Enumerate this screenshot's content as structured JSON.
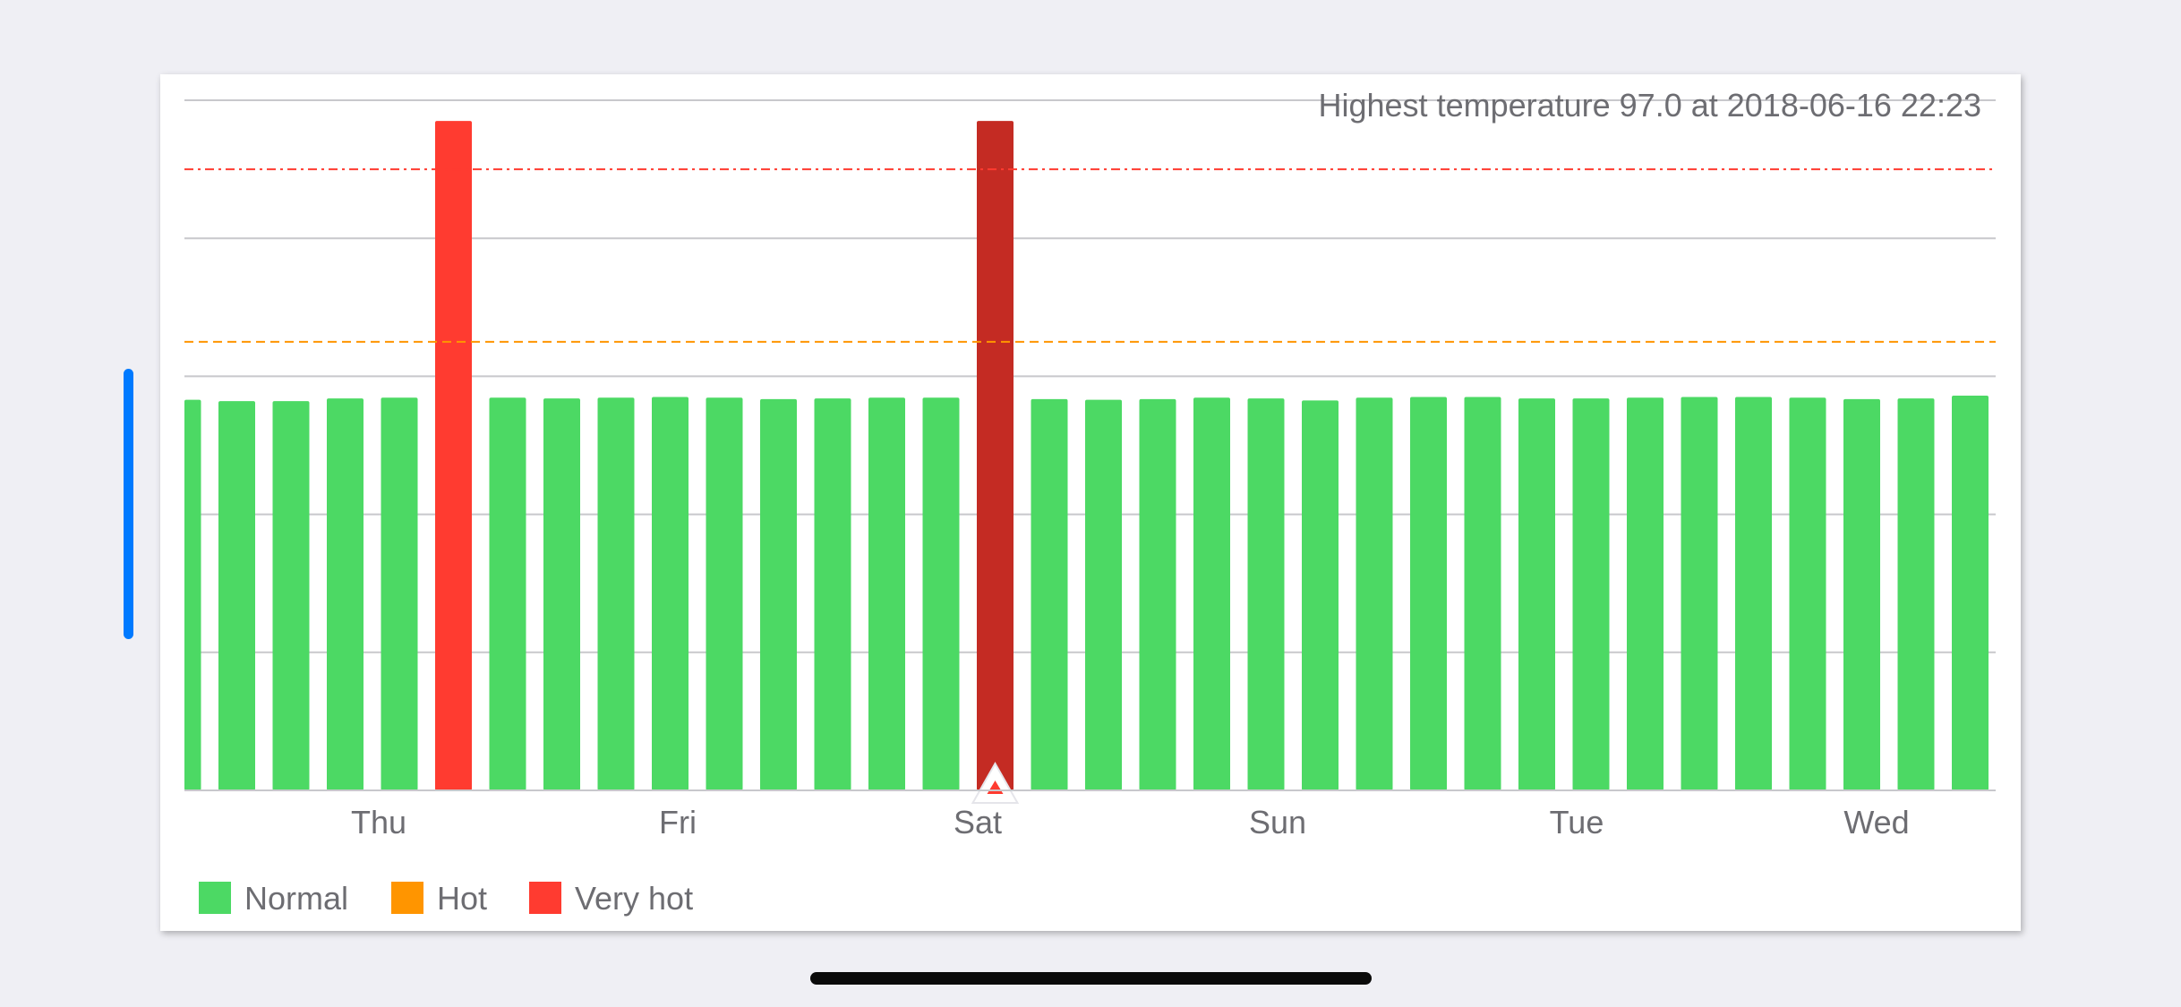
{
  "colors": {
    "normal": "#4cd964",
    "hot": "#ff9500",
    "very_hot": "#ff3b30",
    "selected": "#c42b23",
    "scroll_indicator": "#007aff",
    "home_indicator": "#0a0a0a",
    "gridline": "#c8c8cc"
  },
  "chart_data": {
    "type": "bar",
    "subtitle": "Highest temperature 97.0 at 2018-06-16 22:23",
    "x_tick_labels": [
      "Thu",
      "Fri",
      "Sat",
      "Sun",
      "Tue",
      "Wed"
    ],
    "ylim": [
      0,
      100
    ],
    "grid": true,
    "hot_threshold": 65.0,
    "very_hot_threshold": 90.0,
    "selected_index": 15,
    "legend_position": "bottom-left",
    "legend": [
      {
        "label": "Normal",
        "color_key": "normal"
      },
      {
        "label": "Hot",
        "color_key": "hot"
      },
      {
        "label": "Very hot",
        "color_key": "very_hot"
      }
    ],
    "values": [
      56.6,
      56.4,
      56.4,
      56.8,
      56.9,
      97.0,
      56.9,
      56.8,
      56.9,
      57.0,
      56.9,
      56.7,
      56.8,
      56.9,
      56.9,
      97.0,
      56.7,
      56.6,
      56.7,
      56.9,
      56.8,
      56.5,
      56.9,
      57.0,
      57.0,
      56.8,
      56.8,
      56.9,
      57.0,
      57.0,
      56.9,
      56.7,
      56.8,
      57.2
    ]
  }
}
